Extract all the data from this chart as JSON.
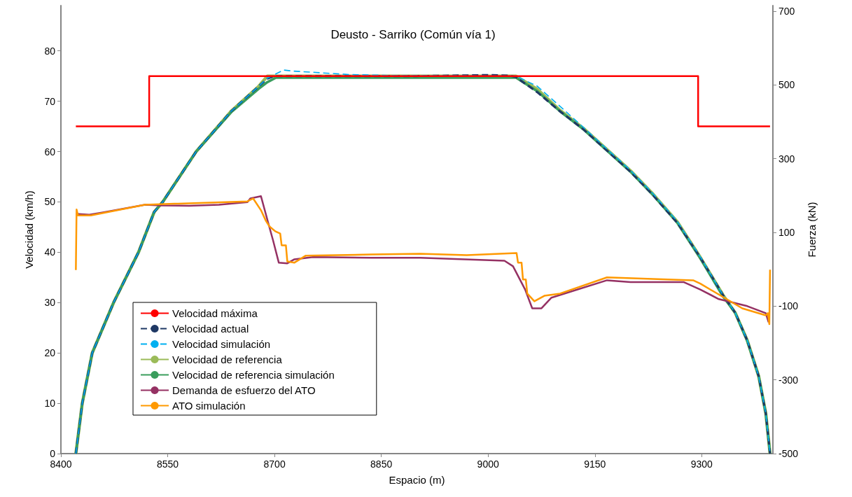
{
  "chart_data": {
    "type": "line",
    "title": "Deusto - Sarriko (Común vía 1)",
    "xlabel": "Espacio (m)",
    "ylabel": "Velocidad (km/h)",
    "y2label": "Fuerza (kN)",
    "xlim": [
      8400,
      9400
    ],
    "xticks": [
      8400,
      8550,
      8700,
      8850,
      9000,
      9150,
      9300
    ],
    "ylim": [
      0,
      89
    ],
    "yticks": [
      0,
      10,
      20,
      30,
      40,
      50,
      60,
      70,
      80
    ],
    "y2lim": [
      -500,
      715
    ],
    "y2ticks": [
      -500,
      -300,
      -100,
      100,
      300,
      500,
      700
    ],
    "grid": false,
    "legend": "bottom left",
    "marker": "none",
    "series": [
      {
        "name": "Velocidad máxima",
        "type": "step",
        "color": "#ff0000",
        "line_style": "solid",
        "x": [
          8421,
          8524,
          9295,
          9396
        ],
        "values": [
          65,
          75,
          65,
          65
        ]
      },
      {
        "name": "Velocidad actual",
        "color": "#1f3864",
        "line_style": "dashed",
        "x": [
          8421,
          8430,
          8444,
          8474,
          8509,
          8531,
          8543,
          8590,
          8639,
          8678,
          8690,
          8700,
          8900,
          9000,
          9030,
          9039,
          9069,
          9101,
          9134,
          9167,
          9200,
          9232,
          9266,
          9298,
          9330,
          9347,
          9364,
          9380,
          9390,
          9396
        ],
        "values": [
          0,
          10,
          20,
          30,
          40,
          48,
          50,
          60,
          68,
          73,
          74.5,
          75,
          75,
          75.2,
          75.1,
          74.8,
          71.8,
          68,
          64.4,
          60.2,
          56,
          51.3,
          45.8,
          39,
          31.5,
          28,
          22.5,
          15.4,
          8,
          0
        ]
      },
      {
        "name": "Velocidad simulación",
        "color": "#00b0f0",
        "line_style": "dashed",
        "x": [
          8421,
          8430,
          8444,
          8474,
          8509,
          8531,
          8543,
          8590,
          8639,
          8678,
          8690,
          8713,
          8725,
          8806,
          8870,
          9039,
          9069,
          9101,
          9134,
          9167,
          9200,
          9232,
          9266,
          9298,
          9330,
          9347,
          9364,
          9380,
          9390,
          9396
        ],
        "values": [
          0,
          10,
          20,
          30,
          40,
          48,
          50,
          60,
          68,
          73,
          74.6,
          76.2,
          76,
          75.3,
          75.1,
          75,
          73,
          69,
          64.8,
          60.5,
          56.3,
          51.6,
          46.1,
          39.1,
          31.5,
          28,
          22.5,
          15.4,
          8,
          0
        ]
      },
      {
        "name": "Velocidad de referencia",
        "color": "#9bbb59",
        "line_style": "solid",
        "x": [
          8421,
          8430,
          8444,
          8474,
          8509,
          8531,
          8543,
          8590,
          8639,
          8678,
          8690,
          9039,
          9069,
          9101,
          9134,
          9167,
          9200,
          9232,
          9266,
          9298,
          9330,
          9347,
          9364,
          9380,
          9390,
          9396
        ],
        "values": [
          0,
          10,
          20,
          30,
          40,
          48,
          50,
          60,
          68,
          73,
          75,
          75,
          72.4,
          68.2,
          64.6,
          60.4,
          56.2,
          51.5,
          46,
          39,
          31.5,
          28,
          22.5,
          15.4,
          8,
          0
        ]
      },
      {
        "name": "Velocidad de referencia simulación",
        "color": "#3a9d5d",
        "line_style": "solid",
        "x": [
          8421,
          8430,
          8444,
          8474,
          8509,
          8531,
          8543,
          8590,
          8639,
          8678,
          8690,
          8702,
          9039,
          9069,
          9101,
          9134,
          9167,
          9200,
          9232,
          9266,
          9298,
          9330,
          9347,
          9364,
          9380,
          9390,
          9396
        ],
        "values": [
          0,
          10,
          20,
          30,
          40,
          48,
          50,
          60,
          67.8,
          72.5,
          73.8,
          74.7,
          74.7,
          72,
          68,
          64.4,
          60.2,
          56,
          51.3,
          45.8,
          38.8,
          31.2,
          28,
          22.4,
          15.4,
          8,
          0
        ]
      },
      {
        "name": "Demanda de esfuerzo del ATO",
        "color": "#953163",
        "line_style": "solid",
        "axis": "y2",
        "x": [
          8421,
          8440,
          8459,
          8490,
          8518,
          8541,
          8580,
          8622,
          8662,
          8666,
          8681,
          8691,
          8698,
          8706,
          8718,
          8728,
          8754,
          8836,
          8905,
          9023,
          9035,
          9052,
          9062,
          9075,
          9089,
          9114,
          9167,
          9200,
          9275,
          9298,
          9324,
          9364,
          9390,
          9394
        ],
        "values": [
          150,
          148,
          154,
          165,
          175,
          173,
          172,
          175,
          182,
          192,
          198,
          127,
          78,
          18,
          16,
          27,
          33,
          31,
          31,
          23,
          8,
          -55,
          -106,
          -106,
          -77,
          -62,
          -30,
          -35,
          -35,
          -55,
          -81,
          -100,
          -119,
          -144
        ]
      },
      {
        "name": "ATO simulación",
        "color": "#ff9900",
        "line_style": "solid",
        "axis": "y2",
        "x": [
          8421,
          8422,
          8424,
          8442,
          8518,
          8662,
          8670,
          8681,
          8688,
          8693,
          8701,
          8708,
          8710,
          8716,
          8718,
          8728,
          8744,
          8836,
          8905,
          8970,
          9040,
          9042,
          9047,
          9049,
          9053,
          9055,
          9065,
          9079,
          9101,
          9167,
          9288,
          9298,
          9357,
          9390,
          9393,
          9395,
          9396
        ],
        "values": [
          -2,
          162,
          146,
          146,
          175,
          184,
          192,
          160,
          131,
          116,
          103,
          97,
          65,
          65,
          21,
          18,
          37,
          40,
          42,
          38,
          44,
          18,
          18,
          -28,
          -28,
          -66,
          -87,
          -72,
          -66,
          -22,
          -30,
          -39,
          -106,
          -125,
          -119,
          -149,
          -1
        ]
      }
    ]
  }
}
